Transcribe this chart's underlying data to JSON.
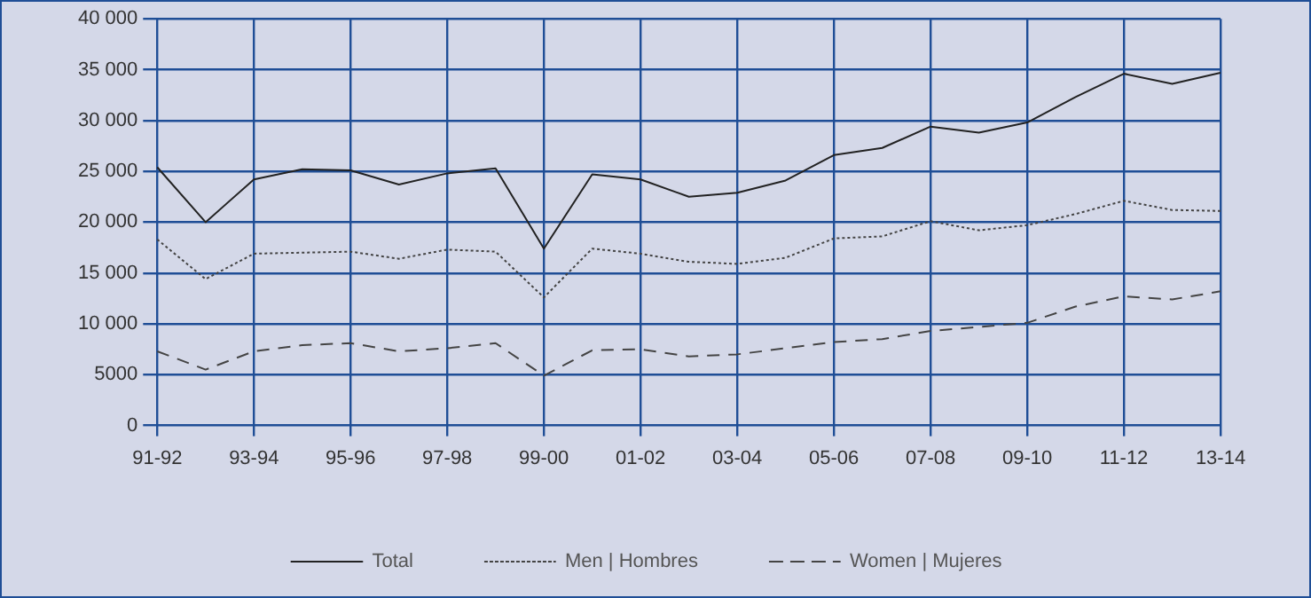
{
  "chart_data": {
    "type": "line",
    "categories": [
      "91-92",
      null,
      "93-94",
      null,
      "95-96",
      null,
      "97-98",
      null,
      "99-00",
      null,
      "01-02",
      null,
      "03-04",
      null,
      "05-06",
      null,
      "07-08",
      null,
      "09-10",
      null,
      "11-12",
      null,
      "13-14"
    ],
    "series": [
      {
        "name": "Total",
        "color": "#222222",
        "line_style": "solid",
        "values": [
          25400,
          20000,
          24200,
          25200,
          25100,
          23700,
          24800,
          25300,
          17400,
          24700,
          24200,
          22500,
          22900,
          24100,
          26600,
          27300,
          29400,
          28800,
          29800,
          32300,
          34600,
          33600,
          34700
        ]
      },
      {
        "name": "Men | Hombres",
        "color": "#444444",
        "line_style": "dotted",
        "values": [
          18300,
          14400,
          16900,
          17000,
          17100,
          16400,
          17300,
          17100,
          12600,
          17400,
          16900,
          16100,
          15900,
          16500,
          18400,
          18600,
          20100,
          19200,
          19700,
          20800,
          22100,
          21200,
          21100
        ]
      },
      {
        "name": "Women | Mujeres",
        "color": "#444444",
        "line_style": "dashed",
        "values": [
          7300,
          5500,
          7300,
          7900,
          8100,
          7300,
          7600,
          8100,
          4900,
          7400,
          7500,
          6800,
          7000,
          7600,
          8200,
          8500,
          9300,
          9700,
          10100,
          11700,
          12700,
          12400,
          13200
        ]
      }
    ],
    "ylim": [
      0,
      40000
    ],
    "yticks": [
      0,
      5000,
      {
        "value": 10000,
        "label": "10 000"
      },
      {
        "value": 15000,
        "label": "15 000"
      },
      {
        "value": 20000,
        "label": "20 000"
      },
      {
        "value": 25000,
        "label": "25 000"
      },
      {
        "value": 30000,
        "label": "30 000"
      },
      {
        "value": 35000,
        "label": "35 000"
      },
      {
        "value": 40000,
        "label": "40 000"
      }
    ],
    "grid": true,
    "legend": "bottom",
    "marker": "none"
  }
}
